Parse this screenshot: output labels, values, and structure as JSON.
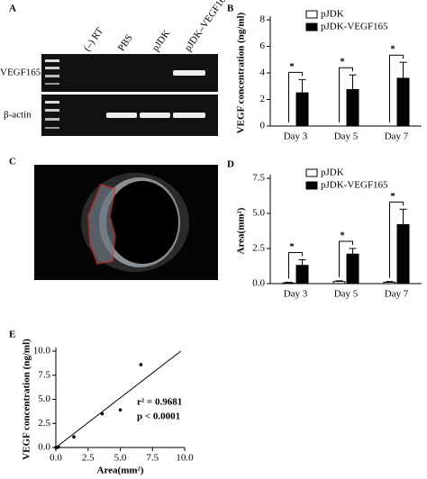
{
  "panel_labels": [
    "A",
    "B",
    "C",
    "D",
    "E"
  ],
  "gel": {
    "lanes": [
      "(–) RT",
      "PBS",
      "pJDK",
      "pJDK–VEGF165"
    ],
    "rows": [
      "VEGF165",
      "β-actin"
    ]
  },
  "chart_data": [
    {
      "type": "bar",
      "y_label": "VEGF concentration (ng/ml)",
      "categories": [
        "Day 3",
        "Day 5",
        "Day 7"
      ],
      "series": [
        {
          "name": "pJDK",
          "color": "#ffffff",
          "values": [
            0,
            0,
            0
          ],
          "errors": [
            0,
            0,
            0
          ]
        },
        {
          "name": "pJDK-VEGF165",
          "color": "#000000",
          "values": [
            2.5,
            2.75,
            3.6
          ],
          "errors": [
            1.0,
            1.1,
            1.2
          ]
        }
      ],
      "significance": [
        "*",
        "*",
        "*"
      ],
      "ylim": [
        0,
        8
      ],
      "yticks": [
        0,
        2,
        4,
        6,
        8
      ],
      "legend": "top-left"
    },
    {
      "type": "bar",
      "y_label": "Area(mm²)",
      "categories": [
        "Day 3",
        "Day 5",
        "Day 7"
      ],
      "series": [
        {
          "name": "pJDK",
          "color": "#ffffff",
          "values": [
            0.05,
            0.15,
            0.1
          ],
          "errors": [
            0.05,
            0.05,
            0.05
          ]
        },
        {
          "name": "pJDK-VEGF165",
          "color": "#000000",
          "values": [
            1.3,
            2.1,
            4.2
          ],
          "errors": [
            0.4,
            0.4,
            1.1
          ]
        }
      ],
      "significance": [
        "*",
        "*",
        "*"
      ],
      "ylim": [
        0,
        7.5
      ],
      "yticks": [
        {
          "value": 0,
          "label": "0.0"
        },
        2.5,
        {
          "value": 5,
          "label": "5.0"
        },
        7.5
      ],
      "legend": "top-left"
    },
    {
      "type": "scatter",
      "x_label": "Area(mm²)",
      "y_label": "VEGF concentration (ng/ml)",
      "x": [
        0,
        0.1,
        0.2,
        1.4,
        3.6,
        5.0,
        6.6
      ],
      "y": [
        0,
        0,
        0.05,
        1.1,
        3.5,
        3.9,
        8.6
      ],
      "color": "#000000",
      "fit": {
        "x": [
          0,
          9.7
        ],
        "y": [
          0,
          10
        ]
      },
      "annotations": [
        "r² = 0.9681",
        "p < 0.0001"
      ],
      "xlim": [
        0,
        10
      ],
      "ylim": [
        0,
        10
      ],
      "xticks": [
        {
          "value": 0,
          "label": "0.0"
        },
        2.5,
        {
          "value": 5,
          "label": "5.0"
        },
        7.5,
        {
          "value": 10,
          "label": "10.0"
        }
      ],
      "yticks": [
        {
          "value": 0,
          "label": "0.0"
        },
        2.5,
        {
          "value": 5,
          "label": "5.0"
        },
        7.5,
        {
          "value": 10,
          "label": "10.0"
        }
      ]
    }
  ]
}
